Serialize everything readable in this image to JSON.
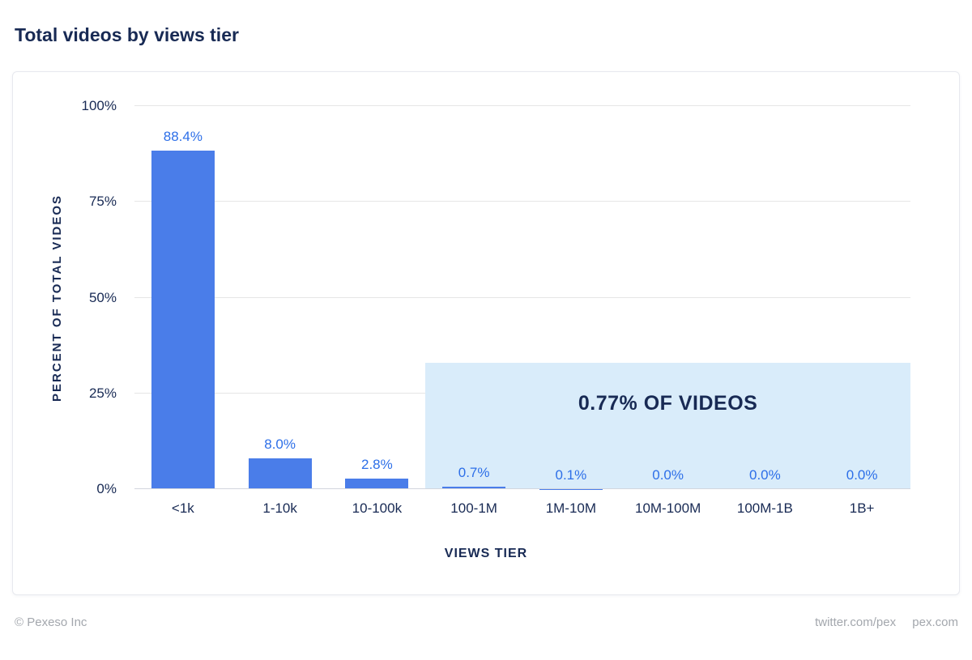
{
  "title": "Total videos by views tier",
  "footer": {
    "copyright": "© Pexeso Inc",
    "links": [
      "twitter.com/pex",
      "pex.com"
    ]
  },
  "chart_data": {
    "type": "bar",
    "title": "Total videos by views tier",
    "categories": [
      "<1k",
      "1-10k",
      "10-100k",
      "100-1M",
      "1M-10M",
      "10M-100M",
      "100M-1B",
      "1B+"
    ],
    "values": [
      88.4,
      8.0,
      2.8,
      0.7,
      0.1,
      0.0,
      0.0,
      0.0
    ],
    "value_labels": [
      "88.4%",
      "8.0%",
      "2.8%",
      "0.7%",
      "0.1%",
      "0.0%",
      "0.0%",
      "0.0%"
    ],
    "xlabel": "VIEWS TIER",
    "ylabel": "PERCENT OF TOTAL VIDEOS",
    "ylim": [
      0,
      100
    ],
    "yticks": [
      "0%",
      "25%",
      "50%",
      "75%",
      "100%"
    ],
    "grid": "horizontal",
    "legend": "none",
    "annotation": {
      "text": "0.77% OF VIDEOS",
      "covers_categories": [
        "100-1M",
        "1M-10M",
        "10M-100M",
        "100M-1B",
        "1B+"
      ],
      "region_top_percent": 33
    },
    "colors": {
      "bar": "#4a7de9",
      "value_label": "#2d6fe8",
      "annotation_bg": "#d9ecfa",
      "annotation_text": "#182a54",
      "axis_text": "#182a54",
      "gridline": "#e6e6e6"
    }
  }
}
